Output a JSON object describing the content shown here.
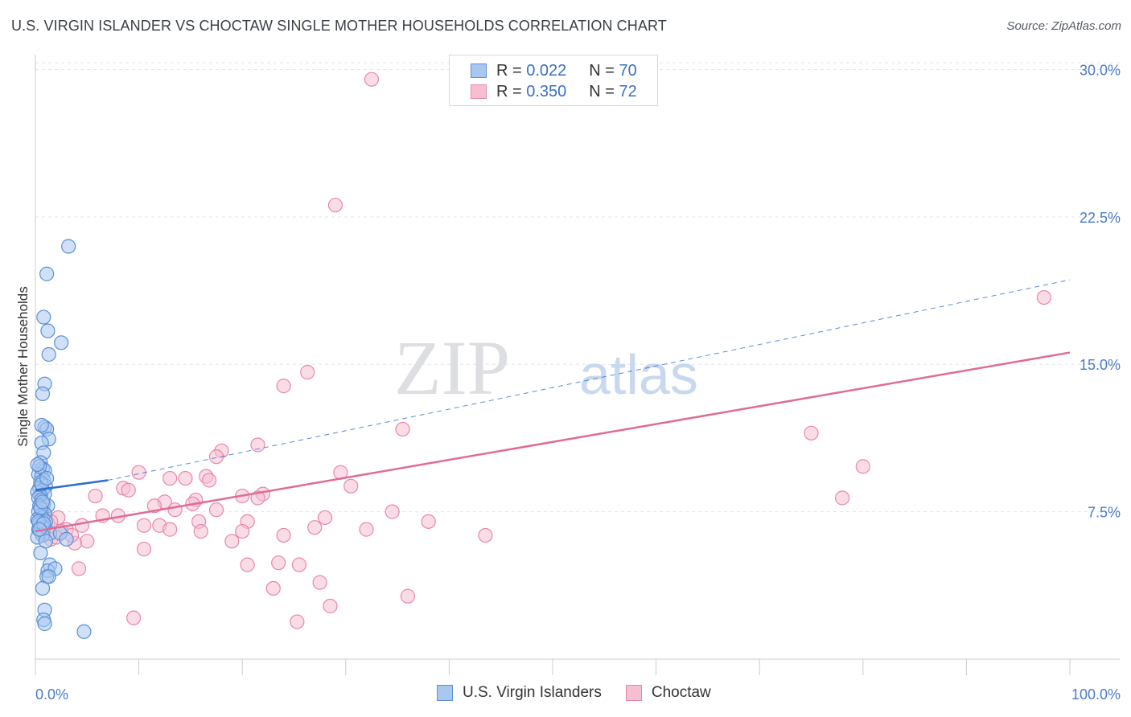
{
  "title": "U.S. VIRGIN ISLANDER VS CHOCTAW SINGLE MOTHER HOUSEHOLDS CORRELATION CHART",
  "source": "Source: ZipAtlas.com",
  "watermark": {
    "zip": "ZIP",
    "atlas": "atlas"
  },
  "legend": {
    "rows": [
      {
        "r_label": "R = ",
        "r_value": "0.022",
        "n_label": "N = ",
        "n_value": "70"
      },
      {
        "r_label": "R = ",
        "r_value": "0.350",
        "n_label": "N = ",
        "n_value": "72"
      }
    ]
  },
  "bottom_legend": [
    {
      "label": "U.S. Virgin Islanders"
    },
    {
      "label": "Choctaw"
    }
  ],
  "colors": {
    "blue_fill": "#a9c8f0",
    "blue_stroke": "#5b8fd6",
    "blue_line": "#2f6fcf",
    "pink_fill": "#f6bfd1",
    "pink_stroke": "#e987a8",
    "pink_line": "#e06b95",
    "tick_text": "#4a7cc9",
    "grid": "#e4e6ea"
  },
  "chart_data": {
    "type": "scatter",
    "xlabel": "",
    "ylabel": "Single Mother Households",
    "xlim": [
      0,
      100
    ],
    "ylim": [
      0,
      31
    ],
    "x_tick_labels": [
      "0.0%",
      "100.0%"
    ],
    "y_ticks": [
      7.5,
      15.0,
      22.5,
      30.0
    ],
    "y_tick_labels": [
      "7.5%",
      "15.0%",
      "22.5%",
      "30.0%"
    ],
    "grid": true,
    "legend_position": "top-center",
    "series": [
      {
        "name": "U.S. Virgin Islanders",
        "color": "#5b8fd6",
        "trend": {
          "x0": 0,
          "y0": 8.6,
          "x1": 7,
          "y1": 9.1,
          "dashed_to_x": 100,
          "dashed_to_y": 19.3
        },
        "points": [
          [
            3.2,
            21.0
          ],
          [
            1.1,
            19.6
          ],
          [
            0.8,
            17.4
          ],
          [
            1.2,
            16.7
          ],
          [
            2.5,
            16.1
          ],
          [
            1.3,
            15.5
          ],
          [
            0.9,
            14.0
          ],
          [
            0.7,
            13.5
          ],
          [
            0.9,
            11.8
          ],
          [
            1.1,
            11.7
          ],
          [
            1.3,
            11.2
          ],
          [
            0.6,
            11.0
          ],
          [
            0.8,
            10.5
          ],
          [
            0.5,
            10.0
          ],
          [
            0.7,
            9.7
          ],
          [
            0.9,
            9.6
          ],
          [
            0.3,
            9.4
          ],
          [
            0.6,
            9.3
          ],
          [
            0.8,
            9.1
          ],
          [
            0.5,
            9.0
          ],
          [
            1.0,
            8.8
          ],
          [
            0.4,
            8.7
          ],
          [
            0.7,
            8.6
          ],
          [
            0.2,
            8.5
          ],
          [
            0.9,
            8.4
          ],
          [
            0.5,
            8.3
          ],
          [
            0.3,
            8.2
          ],
          [
            0.6,
            8.1
          ],
          [
            0.8,
            7.9
          ],
          [
            0.4,
            7.8
          ],
          [
            1.2,
            7.8
          ],
          [
            0.6,
            7.6
          ],
          [
            0.3,
            7.5
          ],
          [
            0.9,
            7.4
          ],
          [
            0.5,
            7.3
          ],
          [
            0.7,
            7.2
          ],
          [
            0.2,
            7.1
          ],
          [
            1.0,
            7.0
          ],
          [
            0.4,
            6.9
          ],
          [
            0.6,
            6.8
          ],
          [
            0.8,
            6.7
          ],
          [
            0.3,
            6.6
          ],
          [
            0.5,
            6.5
          ],
          [
            1.4,
            6.4
          ],
          [
            0.7,
            6.3
          ],
          [
            0.2,
            6.2
          ],
          [
            2.4,
            6.4
          ],
          [
            3.0,
            6.1
          ],
          [
            1.0,
            6.0
          ],
          [
            0.5,
            5.4
          ],
          [
            1.4,
            4.8
          ],
          [
            1.2,
            4.5
          ],
          [
            1.9,
            4.6
          ],
          [
            1.1,
            4.2
          ],
          [
            1.3,
            4.2
          ],
          [
            0.7,
            3.6
          ],
          [
            0.9,
            2.5
          ],
          [
            0.8,
            2.0
          ],
          [
            0.9,
            1.8
          ],
          [
            4.7,
            1.4
          ],
          [
            0.4,
            9.8
          ],
          [
            0.6,
            8.9
          ],
          [
            0.3,
            7.0
          ],
          [
            0.8,
            6.9
          ],
          [
            0.5,
            7.7
          ],
          [
            1.1,
            9.2
          ],
          [
            0.2,
            9.9
          ],
          [
            0.4,
            6.6
          ],
          [
            0.7,
            8.0
          ],
          [
            0.6,
            11.9
          ]
        ]
      },
      {
        "name": "Choctaw",
        "color": "#e987a8",
        "trend": {
          "x0": 0,
          "y0": 6.5,
          "x1": 100,
          "y1": 15.6
        },
        "points": [
          [
            32.5,
            29.5
          ],
          [
            29.0,
            23.1
          ],
          [
            97.5,
            18.4
          ],
          [
            26.3,
            14.6
          ],
          [
            24.0,
            13.9
          ],
          [
            35.5,
            11.7
          ],
          [
            75.0,
            11.5
          ],
          [
            21.5,
            10.9
          ],
          [
            18.0,
            10.6
          ],
          [
            17.5,
            10.3
          ],
          [
            80.0,
            9.8
          ],
          [
            10.0,
            9.5
          ],
          [
            29.5,
            9.5
          ],
          [
            16.5,
            9.3
          ],
          [
            13.0,
            9.2
          ],
          [
            14.5,
            9.2
          ],
          [
            16.8,
            9.1
          ],
          [
            30.5,
            8.8
          ],
          [
            8.5,
            8.7
          ],
          [
            9.0,
            8.6
          ],
          [
            22.0,
            8.4
          ],
          [
            20.0,
            8.3
          ],
          [
            21.5,
            8.2
          ],
          [
            5.8,
            8.3
          ],
          [
            78.0,
            8.2
          ],
          [
            12.5,
            8.0
          ],
          [
            15.5,
            8.1
          ],
          [
            15.2,
            7.9
          ],
          [
            11.5,
            7.8
          ],
          [
            13.5,
            7.6
          ],
          [
            17.5,
            7.6
          ],
          [
            34.5,
            7.5
          ],
          [
            8.0,
            7.3
          ],
          [
            6.5,
            7.3
          ],
          [
            28.0,
            7.2
          ],
          [
            2.2,
            7.2
          ],
          [
            1.0,
            7.3
          ],
          [
            15.8,
            7.0
          ],
          [
            38.0,
            7.0
          ],
          [
            20.5,
            7.0
          ],
          [
            10.5,
            6.8
          ],
          [
            12.0,
            6.8
          ],
          [
            4.5,
            6.8
          ],
          [
            3.0,
            6.6
          ],
          [
            13.0,
            6.6
          ],
          [
            32.0,
            6.6
          ],
          [
            27.0,
            6.7
          ],
          [
            20.0,
            6.5
          ],
          [
            16.0,
            6.5
          ],
          [
            2.5,
            6.5
          ],
          [
            24.0,
            6.3
          ],
          [
            43.5,
            6.3
          ],
          [
            1.5,
            6.1
          ],
          [
            5.0,
            6.0
          ],
          [
            19.0,
            6.0
          ],
          [
            3.8,
            5.9
          ],
          [
            10.5,
            5.6
          ],
          [
            23.5,
            4.9
          ],
          [
            20.5,
            4.8
          ],
          [
            25.5,
            4.8
          ],
          [
            4.2,
            4.6
          ],
          [
            27.5,
            3.9
          ],
          [
            23.0,
            3.6
          ],
          [
            36.0,
            3.2
          ],
          [
            28.5,
            2.7
          ],
          [
            9.5,
            2.1
          ],
          [
            25.3,
            1.9
          ],
          [
            1.2,
            6.9
          ],
          [
            2.0,
            6.2
          ],
          [
            0.8,
            6.4
          ],
          [
            1.5,
            7.0
          ],
          [
            3.5,
            6.3
          ]
        ]
      }
    ]
  }
}
